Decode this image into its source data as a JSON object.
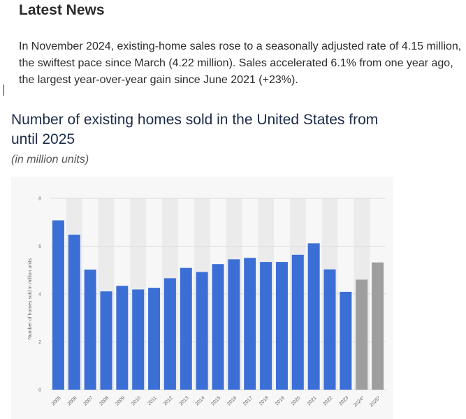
{
  "news": {
    "heading": "Latest News",
    "body": "In November 2024, existing-home sales rose to a seasonally adjusted rate of 4.15 million, the swiftest pace since March (4.22 million). Sales accelerated 6.1% from one year ago, the largest year-over-year gain since June 2021 (+23%)."
  },
  "chart": {
    "title": "Number of existing homes sold in the United States from",
    "title_line2": "until 2025",
    "subtitle": "(in million units)"
  },
  "colors": {
    "actual": "#3b6fd6",
    "forecast": "#9e9e9e",
    "band": "#ebebeb",
    "grid": "#dddddd"
  },
  "chart_data": {
    "type": "bar",
    "title": "Number of existing homes sold in the United States from until 2025",
    "subtitle": "(in million units)",
    "ylabel": "Number of homes sold in million units",
    "xlabel": "",
    "ylim": [
      0,
      8
    ],
    "yticks": [
      0,
      2,
      4,
      6,
      8
    ],
    "grid": true,
    "categories": [
      "2005",
      "2006",
      "2007",
      "2008",
      "2009",
      "2010",
      "2011",
      "2012",
      "2013",
      "2014",
      "2015",
      "2016",
      "2017",
      "2018",
      "2019",
      "2020",
      "2021",
      "2022",
      "2023",
      "2024*",
      "2025*"
    ],
    "values": [
      7.08,
      6.48,
      5.02,
      4.11,
      4.34,
      4.19,
      4.26,
      4.66,
      5.09,
      4.92,
      5.25,
      5.45,
      5.51,
      5.34,
      5.34,
      5.64,
      6.12,
      5.03,
      4.09,
      4.6,
      5.32
    ],
    "forecast": [
      false,
      false,
      false,
      false,
      false,
      false,
      false,
      false,
      false,
      false,
      false,
      false,
      false,
      false,
      false,
      false,
      false,
      false,
      false,
      true,
      true
    ]
  }
}
